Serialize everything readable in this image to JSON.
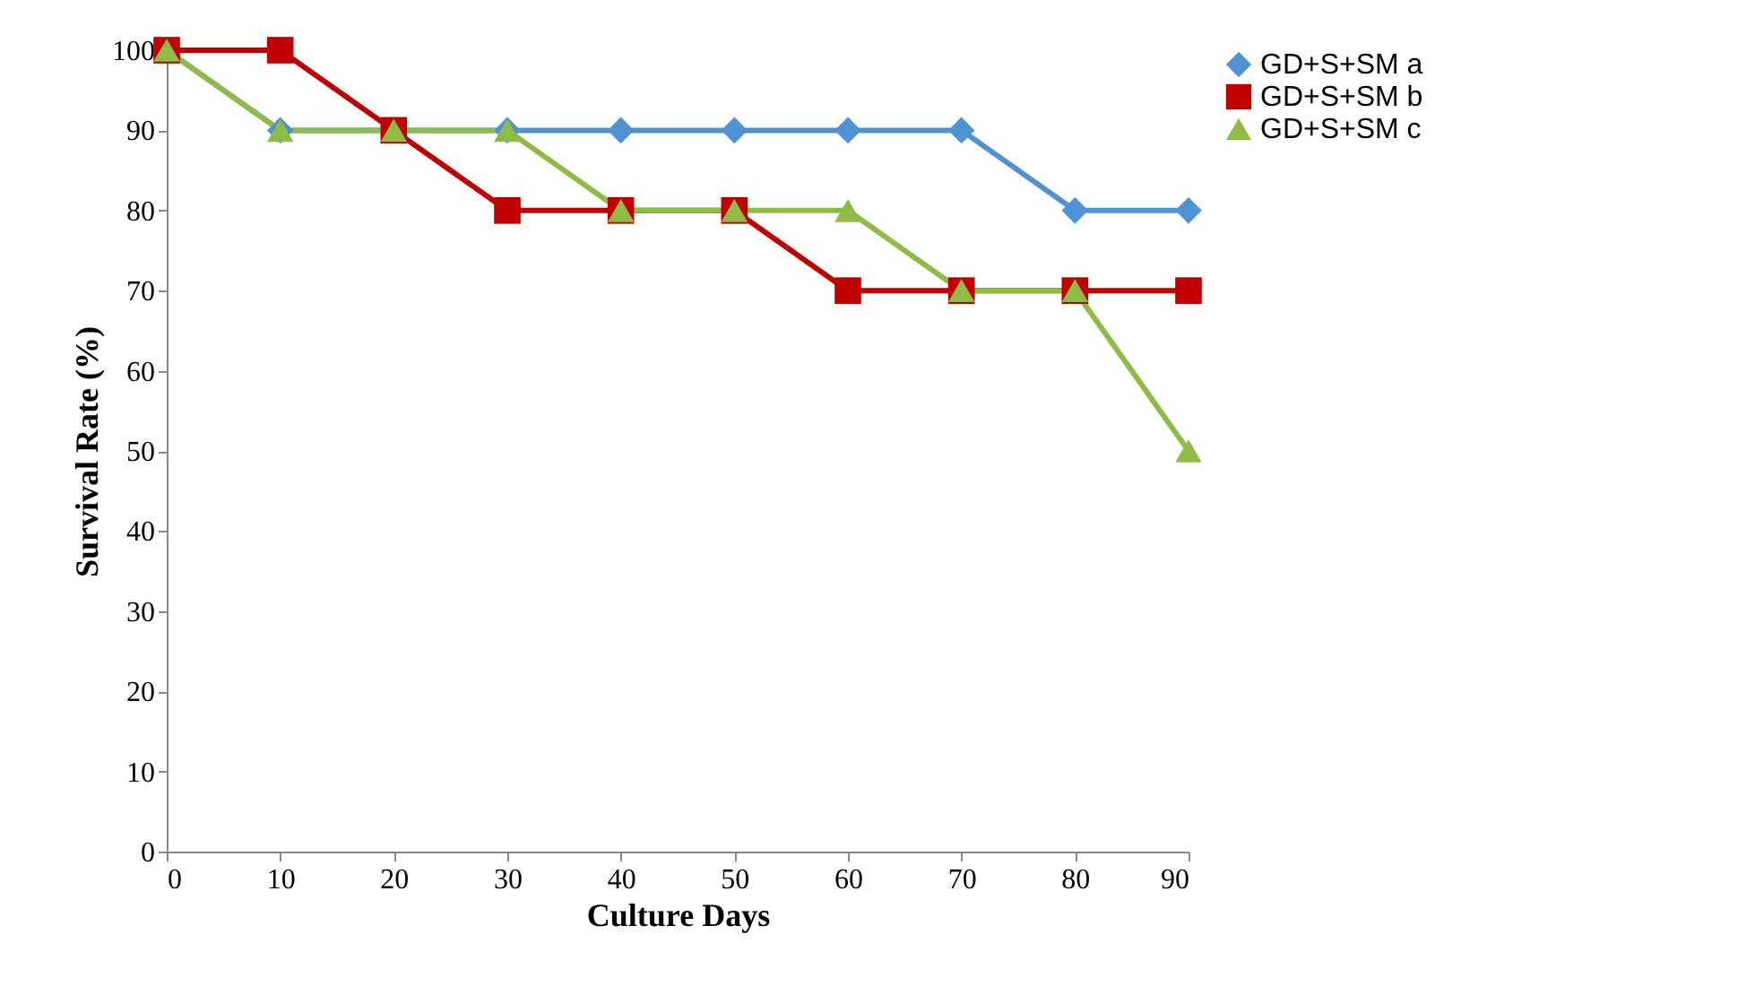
{
  "chart_data": {
    "type": "line",
    "xlabel": "Culture Days",
    "ylabel": "Survival Rate (%)",
    "x": [
      0,
      10,
      20,
      30,
      40,
      50,
      60,
      70,
      80,
      90
    ],
    "series": [
      {
        "name": "GD+S+SM a",
        "color": "#4f93d4",
        "marker": "diamond",
        "values": [
          100,
          90,
          90,
          90,
          90,
          90,
          90,
          90,
          80,
          80
        ]
      },
      {
        "name": "GD+S+SM b",
        "color": "#c00000",
        "marker": "square",
        "values": [
          100,
          100,
          90,
          80,
          80,
          80,
          70,
          70,
          70,
          70
        ]
      },
      {
        "name": "GD+S+SM c",
        "color": "#8fbc45",
        "marker": "triangle",
        "values": [
          100,
          90,
          90,
          90,
          80,
          80,
          80,
          70,
          70,
          50
        ]
      }
    ],
    "xlim": [
      0,
      90
    ],
    "xticks": [
      0,
      10,
      20,
      30,
      40,
      50,
      60,
      70,
      80,
      90
    ],
    "ylim": [
      0,
      100
    ],
    "yticks": [
      0,
      10,
      20,
      30,
      40,
      50,
      60,
      70,
      80,
      90,
      100
    ],
    "grid": false,
    "legend": "right",
    "line_style": "solid"
  }
}
